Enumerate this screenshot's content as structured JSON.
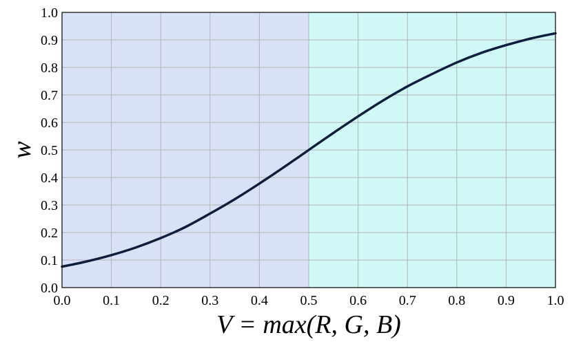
{
  "chart_data": {
    "type": "line",
    "title": "",
    "xlabel": "V = max(R, G, B)",
    "ylabel": "w",
    "xlim": [
      0.0,
      1.0
    ],
    "ylim": [
      0.0,
      1.0
    ],
    "grid": true,
    "xticks": [
      "0.0",
      "0.1",
      "0.2",
      "0.3",
      "0.4",
      "0.5",
      "0.6",
      "0.7",
      "0.8",
      "0.9",
      "1.0"
    ],
    "yticks": [
      "0.0",
      "0.1",
      "0.2",
      "0.3",
      "0.4",
      "0.5",
      "0.6",
      "0.7",
      "0.8",
      "0.9",
      "1.0"
    ],
    "regions": [
      {
        "x_start": 0.0,
        "x_end": 0.5,
        "color": "#d9e1f6"
      },
      {
        "x_start": 0.5,
        "x_end": 1.0,
        "color": "#cff8f6"
      }
    ],
    "series": [
      {
        "color": "#0f1e3c",
        "x": [
          0.0,
          0.05,
          0.1,
          0.15,
          0.2,
          0.25,
          0.3,
          0.35,
          0.4,
          0.45,
          0.5,
          0.55,
          0.6,
          0.65,
          0.7,
          0.75,
          0.8,
          0.85,
          0.9,
          0.95,
          1.0
        ],
        "y": [
          0.076,
          0.095,
          0.118,
          0.146,
          0.18,
          0.22,
          0.269,
          0.321,
          0.378,
          0.438,
          0.5,
          0.562,
          0.622,
          0.679,
          0.731,
          0.776,
          0.818,
          0.853,
          0.881,
          0.905,
          0.924
        ]
      }
    ]
  }
}
